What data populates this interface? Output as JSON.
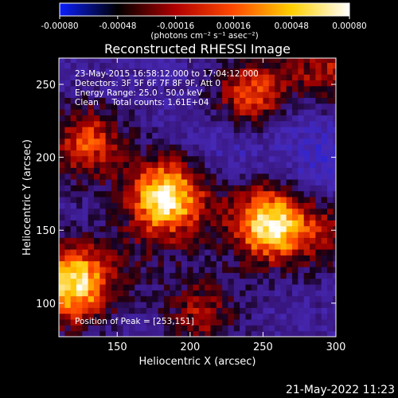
{
  "chart_data": {
    "type": "heatmap",
    "title": "Reconstructed RHESSI Image",
    "xlabel": "Heliocentric X (arcsec)",
    "ylabel": "Heliocentric Y (arcsec)",
    "xlim": [
      110,
      300
    ],
    "ylim": [
      77,
      268
    ],
    "xticks": [
      150,
      200,
      250,
      300
    ],
    "yticks": [
      100,
      150,
      200,
      250
    ],
    "colorbar": {
      "min": -0.0008,
      "max": 0.0008,
      "ticks": [
        "-0.00080",
        "-0.00048",
        "-0.00016",
        "0.00016",
        "0.00048",
        "0.00080"
      ],
      "unit_label": "(photons cm⁻² s⁻¹ asec⁻²)",
      "colormap": [
        "#0a1eff",
        "#000000",
        "#b00000",
        "#ff4a00",
        "#ffd000",
        "#ffffff"
      ]
    },
    "annotations": [
      "23-May-2015 16:58:12.000 to 17:04:12.000",
      "Detectors: 3F 5F 6F 7F 8F 9F, Att 0",
      "Energy Range: 25.0 - 50.0 keV",
      "Clean     Total counts: 1.61E+04"
    ],
    "peak_label": "Position of Peak = [253,151]",
    "peak": [
      253,
      151
    ],
    "grid": false,
    "bright_regions": [
      {
        "x": 180,
        "y": 172,
        "intensity": 0.0008
      },
      {
        "x": 253,
        "y": 151,
        "intensity": 0.0008
      },
      {
        "x": 118,
        "y": 113,
        "intensity": 0.0007
      },
      {
        "x": 128,
        "y": 208,
        "intensity": 0.0005
      },
      {
        "x": 240,
        "y": 240,
        "intensity": 0.00055
      },
      {
        "x": 290,
        "y": 258,
        "intensity": 0.0004
      },
      {
        "x": 205,
        "y": 92,
        "intensity": 0.00035
      },
      {
        "x": 290,
        "y": 148,
        "intensity": 0.0003
      }
    ]
  },
  "footer": {
    "timestamp": "21-May-2022 11:23"
  }
}
